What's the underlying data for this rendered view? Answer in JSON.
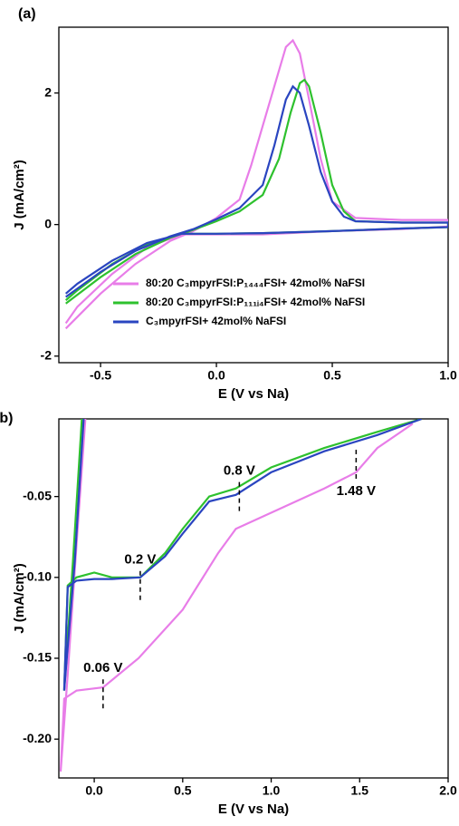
{
  "chart_data": [
    {
      "type": "line",
      "panel_label": "(a)",
      "xlabel": "E (V vs Na)",
      "ylabel": "J (mA/cm²)",
      "xlim": [
        -0.68,
        1.0
      ],
      "ylim": [
        -2.1,
        3.0
      ],
      "xticks": [
        -0.5,
        {
          "value": 0,
          "label": "0.0"
        },
        0.5,
        {
          "value": 1,
          "label": "1.0"
        }
      ],
      "yticks": [
        -2,
        0,
        2
      ],
      "series": [
        {
          "name": "80:20 C₃mpyrFSI:P₁₄₄₄FSI+ 42mol% NaFSI",
          "color": "#e87de8",
          "x": [
            -0.65,
            -0.5,
            -0.35,
            -0.2,
            -0.1,
            0,
            0.1,
            0.15,
            0.2,
            0.25,
            0.3,
            0.33,
            0.36,
            0.4,
            0.45,
            0.5,
            0.6,
            0.8,
            1.0,
            1.0,
            0.8,
            0.5,
            0.2,
            0,
            -0.15,
            -0.3,
            -0.45,
            -0.6,
            -0.65
          ],
          "values": [
            -1.58,
            -1.05,
            -0.6,
            -0.25,
            -0.1,
            0.1,
            0.38,
            0.9,
            1.5,
            2.1,
            2.7,
            2.8,
            2.6,
            1.9,
            1.0,
            0.35,
            0.1,
            0.07,
            0.07,
            -0.03,
            -0.07,
            -0.1,
            -0.15,
            -0.15,
            -0.15,
            -0.35,
            -0.75,
            -1.25,
            -1.5
          ]
        },
        {
          "name": "80:20 C₃mpyrFSI:P₁₁₁ᵢ₄FSI+ 42mol% NaFSI",
          "color": "#2ec12e",
          "x": [
            -0.65,
            -0.5,
            -0.35,
            -0.2,
            -0.1,
            0,
            0.1,
            0.2,
            0.27,
            0.32,
            0.36,
            0.38,
            0.4,
            0.45,
            0.5,
            0.55,
            0.6,
            0.8,
            1.0,
            1.0,
            0.8,
            0.5,
            0.2,
            0,
            -0.15,
            -0.3,
            -0.45,
            -0.6,
            -0.65
          ],
          "values": [
            -1.2,
            -0.8,
            -0.45,
            -0.2,
            -0.08,
            0.05,
            0.2,
            0.45,
            1.0,
            1.7,
            2.15,
            2.2,
            2.1,
            1.4,
            0.6,
            0.2,
            0.05,
            0.03,
            0.03,
            -0.04,
            -0.06,
            -0.1,
            -0.13,
            -0.14,
            -0.14,
            -0.3,
            -0.6,
            -1.0,
            -1.15
          ]
        },
        {
          "name": "C₃mpyrFSI+ 42mol% NaFSI",
          "color": "#2a45c0",
          "x": [
            -0.65,
            -0.5,
            -0.35,
            -0.2,
            -0.1,
            0,
            0.1,
            0.2,
            0.25,
            0.3,
            0.33,
            0.36,
            0.4,
            0.45,
            0.5,
            0.55,
            0.6,
            0.8,
            1.0,
            1.0,
            0.8,
            0.5,
            0.2,
            0,
            -0.15,
            -0.3,
            -0.45,
            -0.6,
            -0.65
          ],
          "values": [
            -1.1,
            -0.72,
            -0.4,
            -0.18,
            -0.07,
            0.08,
            0.25,
            0.6,
            1.2,
            1.9,
            2.1,
            2.0,
            1.5,
            0.8,
            0.35,
            0.12,
            0.05,
            0.03,
            0.03,
            -0.04,
            -0.06,
            -0.1,
            -0.13,
            -0.14,
            -0.14,
            -0.28,
            -0.55,
            -0.9,
            -1.05
          ]
        }
      ]
    },
    {
      "type": "line",
      "panel_label": "(b)",
      "xlabel": "E (V vs Na)",
      "ylabel": "J (mA/cm²)",
      "xlim": [
        -0.2,
        2.0
      ],
      "ylim": [
        -0.224,
        -0.002
      ],
      "xticks": [
        {
          "value": 0,
          "label": "0.0"
        },
        0.5,
        {
          "value": 1,
          "label": "1.0"
        },
        1.5,
        {
          "value": 2,
          "label": "2.0"
        }
      ],
      "yticks": [
        -0.05,
        {
          "value": -0.1,
          "label": "-0.10"
        },
        -0.15,
        {
          "value": -0.2,
          "label": "-0.20"
        }
      ],
      "series": [
        {
          "color": "#e87de8",
          "x": [
            -0.05,
            -0.1,
            -0.15,
            -0.19,
            -0.17,
            -0.1,
            0.05,
            0.25,
            0.5,
            0.7,
            0.8,
            1.0,
            1.3,
            1.48,
            1.6,
            1.8
          ],
          "values": [
            -0.002,
            -0.08,
            -0.16,
            -0.22,
            -0.175,
            -0.17,
            -0.168,
            -0.15,
            -0.12,
            -0.085,
            -0.07,
            -0.06,
            -0.045,
            -0.035,
            -0.02,
            -0.005
          ]
        },
        {
          "color": "#2ec12e",
          "x": [
            -0.07,
            -0.12,
            -0.17,
            -0.15,
            -0.1,
            0,
            0.1,
            0.26,
            0.4,
            0.5,
            0.65,
            0.8,
            1.0,
            1.3,
            1.6,
            1.85
          ],
          "values": [
            -0.002,
            -0.09,
            -0.17,
            -0.105,
            -0.1,
            -0.097,
            -0.1,
            -0.1,
            -0.085,
            -0.07,
            -0.05,
            -0.045,
            -0.032,
            -0.02,
            -0.01,
            -0.002
          ]
        },
        {
          "color": "#2a45c0",
          "x": [
            -0.06,
            -0.11,
            -0.17,
            -0.15,
            -0.1,
            0,
            0.1,
            0.26,
            0.4,
            0.5,
            0.65,
            0.8,
            1.0,
            1.3,
            1.6,
            1.85
          ],
          "values": [
            -0.002,
            -0.09,
            -0.17,
            -0.106,
            -0.102,
            -0.101,
            -0.101,
            -0.1,
            -0.087,
            -0.073,
            -0.053,
            -0.049,
            -0.035,
            -0.022,
            -0.012,
            -0.002
          ]
        }
      ],
      "annotations": [
        {
          "text": "0.06 V",
          "x": 0.05,
          "y": -0.172,
          "side": "above"
        },
        {
          "text": "0.2 V",
          "x": 0.26,
          "y": -0.105,
          "side": "above"
        },
        {
          "text": "0.8 V",
          "x": 0.82,
          "y": -0.05,
          "side": "above"
        },
        {
          "text": "1.48 V",
          "x": 1.48,
          "y": -0.03,
          "side": "below"
        }
      ]
    }
  ]
}
